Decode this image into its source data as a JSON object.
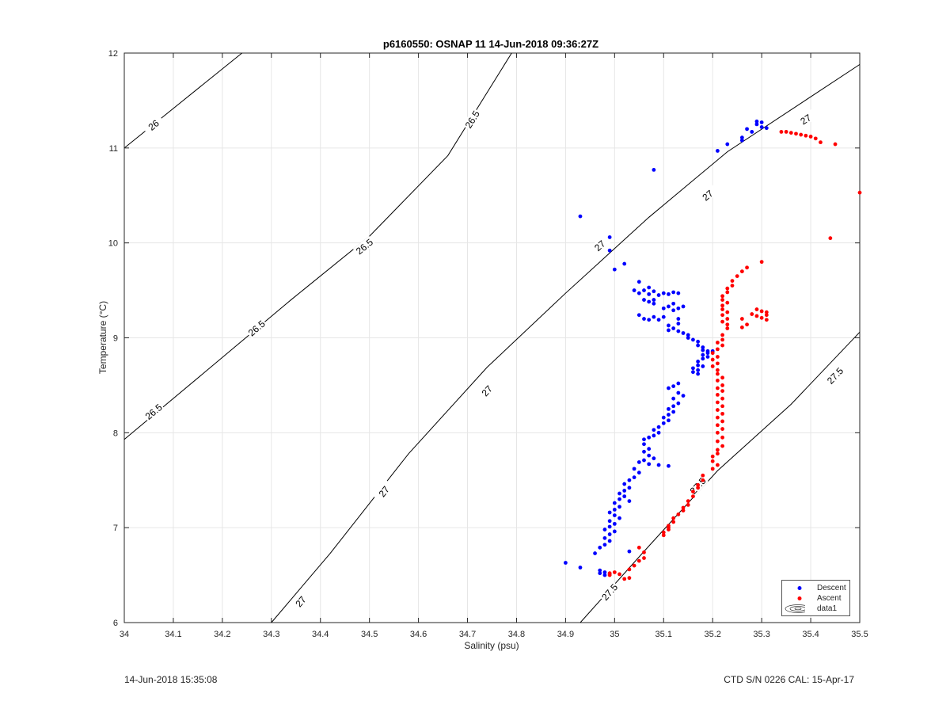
{
  "chart_data": {
    "type": "scatter",
    "title": "p6160550: OSNAP 11 14-Jun-2018 09:36:27Z",
    "xlabel": "Salinity (psu)",
    "ylabel": "Temperature (°C)",
    "xlim": [
      34,
      35.5
    ],
    "ylim": [
      6,
      12
    ],
    "xticks": [
      "34",
      "34.1",
      "34.2",
      "34.3",
      "34.4",
      "34.5",
      "34.6",
      "34.7",
      "34.8",
      "34.9",
      "35",
      "35.1",
      "35.2",
      "35.3",
      "35.4",
      "35.5"
    ],
    "yticks": [
      "6",
      "7",
      "8",
      "9",
      "10",
      "11",
      "12"
    ],
    "grid": true,
    "legend_position": "bottom-right",
    "legend": [
      "Descent",
      "Ascent",
      "data1"
    ],
    "density_contours": [
      {
        "label": "26",
        "points": [
          [
            34.0,
            11.0
          ],
          [
            34.24,
            12.0
          ]
        ],
        "label_positions": [
          [
            34.06,
            11.24
          ]
        ]
      },
      {
        "label": "26.5",
        "points": [
          [
            34.0,
            7.93
          ],
          [
            34.16,
            8.62
          ],
          [
            34.34,
            9.4
          ],
          [
            34.5,
            10.07
          ],
          [
            34.66,
            10.92
          ],
          [
            34.79,
            12.0
          ]
        ],
        "label_positions": [
          [
            34.06,
            8.22
          ],
          [
            34.27,
            9.1
          ],
          [
            34.49,
            9.96
          ],
          [
            34.71,
            11.3
          ]
        ]
      },
      {
        "label": "27",
        "points": [
          [
            34.3,
            6.0
          ],
          [
            34.42,
            6.73
          ],
          [
            34.58,
            7.78
          ],
          [
            34.74,
            8.69
          ],
          [
            34.9,
            9.47
          ],
          [
            35.07,
            10.27
          ],
          [
            35.23,
            10.96
          ],
          [
            35.5,
            11.88
          ]
        ],
        "label_positions": [
          [
            34.36,
            6.22
          ],
          [
            34.53,
            7.38
          ],
          [
            34.74,
            8.44
          ],
          [
            34.97,
            9.97
          ],
          [
            35.19,
            10.5
          ],
          [
            35.39,
            11.3
          ]
        ]
      },
      {
        "label": "27.5",
        "points": [
          [
            34.93,
            6.0
          ],
          [
            35.06,
            6.75
          ],
          [
            35.21,
            7.6
          ],
          [
            35.36,
            8.3
          ],
          [
            35.5,
            9.06
          ]
        ],
        "label_positions": [
          [
            34.99,
            6.32
          ],
          [
            35.17,
            7.44
          ],
          [
            35.45,
            8.6
          ]
        ]
      }
    ],
    "series": [
      {
        "name": "Descent",
        "color": "#0000ff",
        "points": [
          [
            35.3,
            11.27
          ],
          [
            35.3,
            11.22
          ],
          [
            35.29,
            11.25
          ],
          [
            35.31,
            11.21
          ],
          [
            35.28,
            11.17
          ],
          [
            35.29,
            11.28
          ],
          [
            35.27,
            11.2
          ],
          [
            35.26,
            11.08
          ],
          [
            35.26,
            11.11
          ],
          [
            35.23,
            11.04
          ],
          [
            35.21,
            10.97
          ],
          [
            35.08,
            10.77
          ],
          [
            34.93,
            10.28
          ],
          [
            34.99,
            10.06
          ],
          [
            34.99,
            9.92
          ],
          [
            35.02,
            9.78
          ],
          [
            35.0,
            9.72
          ],
          [
            35.05,
            9.59
          ],
          [
            35.04,
            9.5
          ],
          [
            35.05,
            9.47
          ],
          [
            35.06,
            9.5
          ],
          [
            35.07,
            9.46
          ],
          [
            35.07,
            9.53
          ],
          [
            35.08,
            9.49
          ],
          [
            35.09,
            9.45
          ],
          [
            35.1,
            9.47
          ],
          [
            35.11,
            9.46
          ],
          [
            35.12,
            9.48
          ],
          [
            35.13,
            9.47
          ],
          [
            35.06,
            9.4
          ],
          [
            35.07,
            9.38
          ],
          [
            35.08,
            9.4
          ],
          [
            35.08,
            9.36
          ],
          [
            35.1,
            9.31
          ],
          [
            35.11,
            9.33
          ],
          [
            35.12,
            9.29
          ],
          [
            35.13,
            9.31
          ],
          [
            35.14,
            9.33
          ],
          [
            35.12,
            9.36
          ],
          [
            35.13,
            9.2
          ],
          [
            35.13,
            9.15
          ],
          [
            35.05,
            9.24
          ],
          [
            35.06,
            9.2
          ],
          [
            35.07,
            9.19
          ],
          [
            35.08,
            9.22
          ],
          [
            35.09,
            9.19
          ],
          [
            35.1,
            9.22
          ],
          [
            35.11,
            9.13
          ],
          [
            35.12,
            9.1
          ],
          [
            35.11,
            9.08
          ],
          [
            35.13,
            9.07
          ],
          [
            35.14,
            9.05
          ],
          [
            35.15,
            9.03
          ],
          [
            35.15,
            9.0
          ],
          [
            35.16,
            8.98
          ],
          [
            35.17,
            8.96
          ],
          [
            35.17,
            8.92
          ],
          [
            35.18,
            8.9
          ],
          [
            35.18,
            8.87
          ],
          [
            35.19,
            8.86
          ],
          [
            35.2,
            8.86
          ],
          [
            35.19,
            8.84
          ],
          [
            35.18,
            8.82
          ],
          [
            35.19,
            8.8
          ],
          [
            35.18,
            8.78
          ],
          [
            35.17,
            8.75
          ],
          [
            35.17,
            8.71
          ],
          [
            35.16,
            8.68
          ],
          [
            35.17,
            8.66
          ],
          [
            35.16,
            8.64
          ],
          [
            35.18,
            8.7
          ],
          [
            35.17,
            8.62
          ],
          [
            35.13,
            8.52
          ],
          [
            35.12,
            8.49
          ],
          [
            35.11,
            8.47
          ],
          [
            35.13,
            8.42
          ],
          [
            35.14,
            8.39
          ],
          [
            35.12,
            8.36
          ],
          [
            35.13,
            8.31
          ],
          [
            35.12,
            8.28
          ],
          [
            35.11,
            8.25
          ],
          [
            35.12,
            8.22
          ],
          [
            35.11,
            8.19
          ],
          [
            35.1,
            8.16
          ],
          [
            35.11,
            8.13
          ],
          [
            35.1,
            8.1
          ],
          [
            35.09,
            8.06
          ],
          [
            35.08,
            8.03
          ],
          [
            35.09,
            8.0
          ],
          [
            35.08,
            7.97
          ],
          [
            35.07,
            7.95
          ],
          [
            35.06,
            7.93
          ],
          [
            35.06,
            7.88
          ],
          [
            35.07,
            7.83
          ],
          [
            35.06,
            7.8
          ],
          [
            35.07,
            7.76
          ],
          [
            35.08,
            7.73
          ],
          [
            35.06,
            7.71
          ],
          [
            35.05,
            7.69
          ],
          [
            35.07,
            7.67
          ],
          [
            35.09,
            7.66
          ],
          [
            35.11,
            7.65
          ],
          [
            35.04,
            7.62
          ],
          [
            35.05,
            7.58
          ],
          [
            35.04,
            7.53
          ],
          [
            35.03,
            7.5
          ],
          [
            35.02,
            7.46
          ],
          [
            35.03,
            7.42
          ],
          [
            35.02,
            7.39
          ],
          [
            35.01,
            7.36
          ],
          [
            35.02,
            7.33
          ],
          [
            35.01,
            7.3
          ],
          [
            35.03,
            7.28
          ],
          [
            35.0,
            7.26
          ],
          [
            35.01,
            7.22
          ],
          [
            35.0,
            7.19
          ],
          [
            34.99,
            7.16
          ],
          [
            35.0,
            7.13
          ],
          [
            35.01,
            7.1
          ],
          [
            34.99,
            7.07
          ],
          [
            35.0,
            7.04
          ],
          [
            34.99,
            7.01
          ],
          [
            34.98,
            6.98
          ],
          [
            35.0,
            6.96
          ],
          [
            34.99,
            6.93
          ],
          [
            34.98,
            6.89
          ],
          [
            34.99,
            6.86
          ],
          [
            34.98,
            6.82
          ],
          [
            34.97,
            6.79
          ],
          [
            34.96,
            6.73
          ],
          [
            35.03,
            6.75
          ],
          [
            34.9,
            6.63
          ],
          [
            34.93,
            6.58
          ],
          [
            34.97,
            6.55
          ],
          [
            34.98,
            6.53
          ],
          [
            34.97,
            6.52
          ],
          [
            34.99,
            6.51
          ],
          [
            34.98,
            6.5
          ]
        ]
      },
      {
        "name": "Ascent",
        "color": "#ff0000",
        "points": [
          [
            35.34,
            11.17
          ],
          [
            35.35,
            11.17
          ],
          [
            35.36,
            11.16
          ],
          [
            35.37,
            11.15
          ],
          [
            35.38,
            11.14
          ],
          [
            35.39,
            11.13
          ],
          [
            35.4,
            11.12
          ],
          [
            35.41,
            11.1
          ],
          [
            35.42,
            11.06
          ],
          [
            35.45,
            11.04
          ],
          [
            35.5,
            10.53
          ],
          [
            35.44,
            10.05
          ],
          [
            35.3,
            9.8
          ],
          [
            35.27,
            9.74
          ],
          [
            35.26,
            9.7
          ],
          [
            35.25,
            9.65
          ],
          [
            35.24,
            9.6
          ],
          [
            35.24,
            9.55
          ],
          [
            35.23,
            9.52
          ],
          [
            35.23,
            9.48
          ],
          [
            35.22,
            9.44
          ],
          [
            35.22,
            9.4
          ],
          [
            35.23,
            9.37
          ],
          [
            35.22,
            9.34
          ],
          [
            35.22,
            9.3
          ],
          [
            35.23,
            9.27
          ],
          [
            35.22,
            9.24
          ],
          [
            35.23,
            9.2
          ],
          [
            35.22,
            9.17
          ],
          [
            35.23,
            9.14
          ],
          [
            35.23,
            9.1
          ],
          [
            35.26,
            9.2
          ],
          [
            35.27,
            9.14
          ],
          [
            35.26,
            9.11
          ],
          [
            35.29,
            9.3
          ],
          [
            35.3,
            9.28
          ],
          [
            35.31,
            9.27
          ],
          [
            35.31,
            9.24
          ],
          [
            35.3,
            9.21
          ],
          [
            35.31,
            9.19
          ],
          [
            35.29,
            9.23
          ],
          [
            35.28,
            9.25
          ],
          [
            35.22,
            9.03
          ],
          [
            35.22,
            8.98
          ],
          [
            35.21,
            8.95
          ],
          [
            35.22,
            8.92
          ],
          [
            35.21,
            8.88
          ],
          [
            35.2,
            8.84
          ],
          [
            35.21,
            8.8
          ],
          [
            35.2,
            8.77
          ],
          [
            35.21,
            8.73
          ],
          [
            35.2,
            8.7
          ],
          [
            35.21,
            8.66
          ],
          [
            35.21,
            8.62
          ],
          [
            35.22,
            8.58
          ],
          [
            35.21,
            8.55
          ],
          [
            35.22,
            8.5
          ],
          [
            35.21,
            8.47
          ],
          [
            35.22,
            8.44
          ],
          [
            35.21,
            8.4
          ],
          [
            35.22,
            8.36
          ],
          [
            35.21,
            8.32
          ],
          [
            35.22,
            8.28
          ],
          [
            35.21,
            8.24
          ],
          [
            35.22,
            8.2
          ],
          [
            35.21,
            8.16
          ],
          [
            35.22,
            8.12
          ],
          [
            35.21,
            8.08
          ],
          [
            35.22,
            8.04
          ],
          [
            35.21,
            8.0
          ],
          [
            35.22,
            7.95
          ],
          [
            35.21,
            7.91
          ],
          [
            35.22,
            7.86
          ],
          [
            35.21,
            7.82
          ],
          [
            35.21,
            7.78
          ],
          [
            35.2,
            7.75
          ],
          [
            35.2,
            7.7
          ],
          [
            35.21,
            7.66
          ],
          [
            35.2,
            7.62
          ],
          [
            35.18,
            7.55
          ],
          [
            35.18,
            7.5
          ],
          [
            35.17,
            7.45
          ],
          [
            35.17,
            7.42
          ],
          [
            35.16,
            7.38
          ],
          [
            35.16,
            7.33
          ],
          [
            35.15,
            7.28
          ],
          [
            35.15,
            7.24
          ],
          [
            35.14,
            7.21
          ],
          [
            35.14,
            7.18
          ],
          [
            35.13,
            7.14
          ],
          [
            35.12,
            7.1
          ],
          [
            35.12,
            7.06
          ],
          [
            35.11,
            7.02
          ],
          [
            35.11,
            6.98
          ],
          [
            35.1,
            6.95
          ],
          [
            35.1,
            6.92
          ],
          [
            35.11,
            7.0
          ],
          [
            35.05,
            6.79
          ],
          [
            35.06,
            6.74
          ],
          [
            35.06,
            6.68
          ],
          [
            35.05,
            6.65
          ],
          [
            35.04,
            6.6
          ],
          [
            35.03,
            6.56
          ],
          [
            35.03,
            6.47
          ],
          [
            35.02,
            6.46
          ],
          [
            35.01,
            6.51
          ],
          [
            35.0,
            6.53
          ],
          [
            34.99,
            6.52
          ],
          [
            34.99,
            6.5
          ]
        ]
      }
    ]
  },
  "footer": {
    "left": "14-Jun-2018 15:35:08",
    "right": "CTD S/N 0226  CAL: 15-Apr-17"
  }
}
